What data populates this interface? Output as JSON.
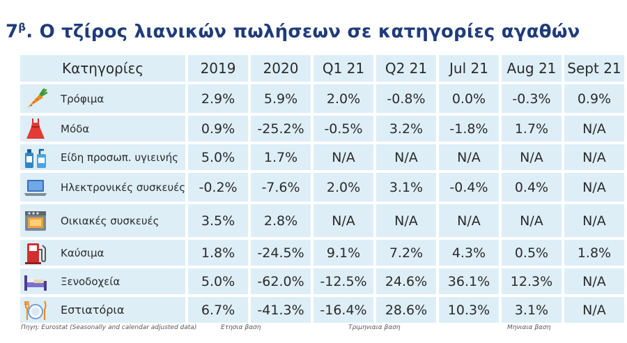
{
  "title": {
    "prefix": "7",
    "sup": "β",
    "text": ". Ο τζίρος λιανικών πωλήσεων σε κατηγορίες αγαθών"
  },
  "columns": [
    "Κατηγορίες",
    "2019",
    "2020",
    "Q1 21",
    "Q2 21",
    "Jul 21",
    "Aug 21",
    "Sept 21"
  ],
  "rows": [
    {
      "icon": "carrot-icon",
      "label": "Τρόφιμα",
      "values": [
        "2.9%",
        "5.9%",
        "2.0%",
        "-0.8%",
        "0.0%",
        "-0.3%",
        "0.9%"
      ]
    },
    {
      "icon": "dress-icon",
      "label": "Μόδα",
      "values": [
        "0.9%",
        "-25.2%",
        "-0.5%",
        "3.2%",
        "-1.8%",
        "1.7%",
        "N/A"
      ]
    },
    {
      "icon": "toiletries-icon",
      "label": "Είδη προσωπ. υγιεινής",
      "values": [
        "5.0%",
        "1.7%",
        "N/A",
        "N/A",
        "N/A",
        "N/A",
        "N/A"
      ]
    },
    {
      "icon": "laptop-icon",
      "label": "Ηλεκτρονικές συσκευές",
      "values": [
        "-0.2%",
        "-7.6%",
        "2.0%",
        "3.1%",
        "-0.4%",
        "0.4%",
        "N/A"
      ]
    },
    {
      "icon": "oven-icon",
      "label": "Οικιακές συσκευές",
      "values": [
        "3.5%",
        "2.8%",
        "N/A",
        "N/A",
        "N/A",
        "N/A",
        "N/A"
      ]
    },
    {
      "icon": "fuel-pump-icon",
      "label": "Καύσιμα",
      "values": [
        "1.8%",
        "-24.5%",
        "9.1%",
        "7.2%",
        "4.3%",
        "0.5%",
        "1.8%"
      ]
    },
    {
      "icon": "bed-icon",
      "label": "Ξενοδοχεία",
      "values": [
        "5.0%",
        "-62.0%",
        "-12.5%",
        "24.6%",
        "36.1%",
        "12.3%",
        "N/A"
      ]
    },
    {
      "icon": "plate-cutlery-icon",
      "label": "Εστιατόρια",
      "values": [
        "6.7%",
        "-41.3%",
        "-16.4%",
        "28.6%",
        "10.3%",
        "3.1%",
        "N/A"
      ]
    }
  ],
  "footer": {
    "source": "Πηγη: Eurostat (Seasonally and calendar adjusted data)",
    "annual": "Ετησια βαση",
    "quarterly": "Τριμηνιαια βαση",
    "monthly": "Μηνιαια βαση"
  }
}
